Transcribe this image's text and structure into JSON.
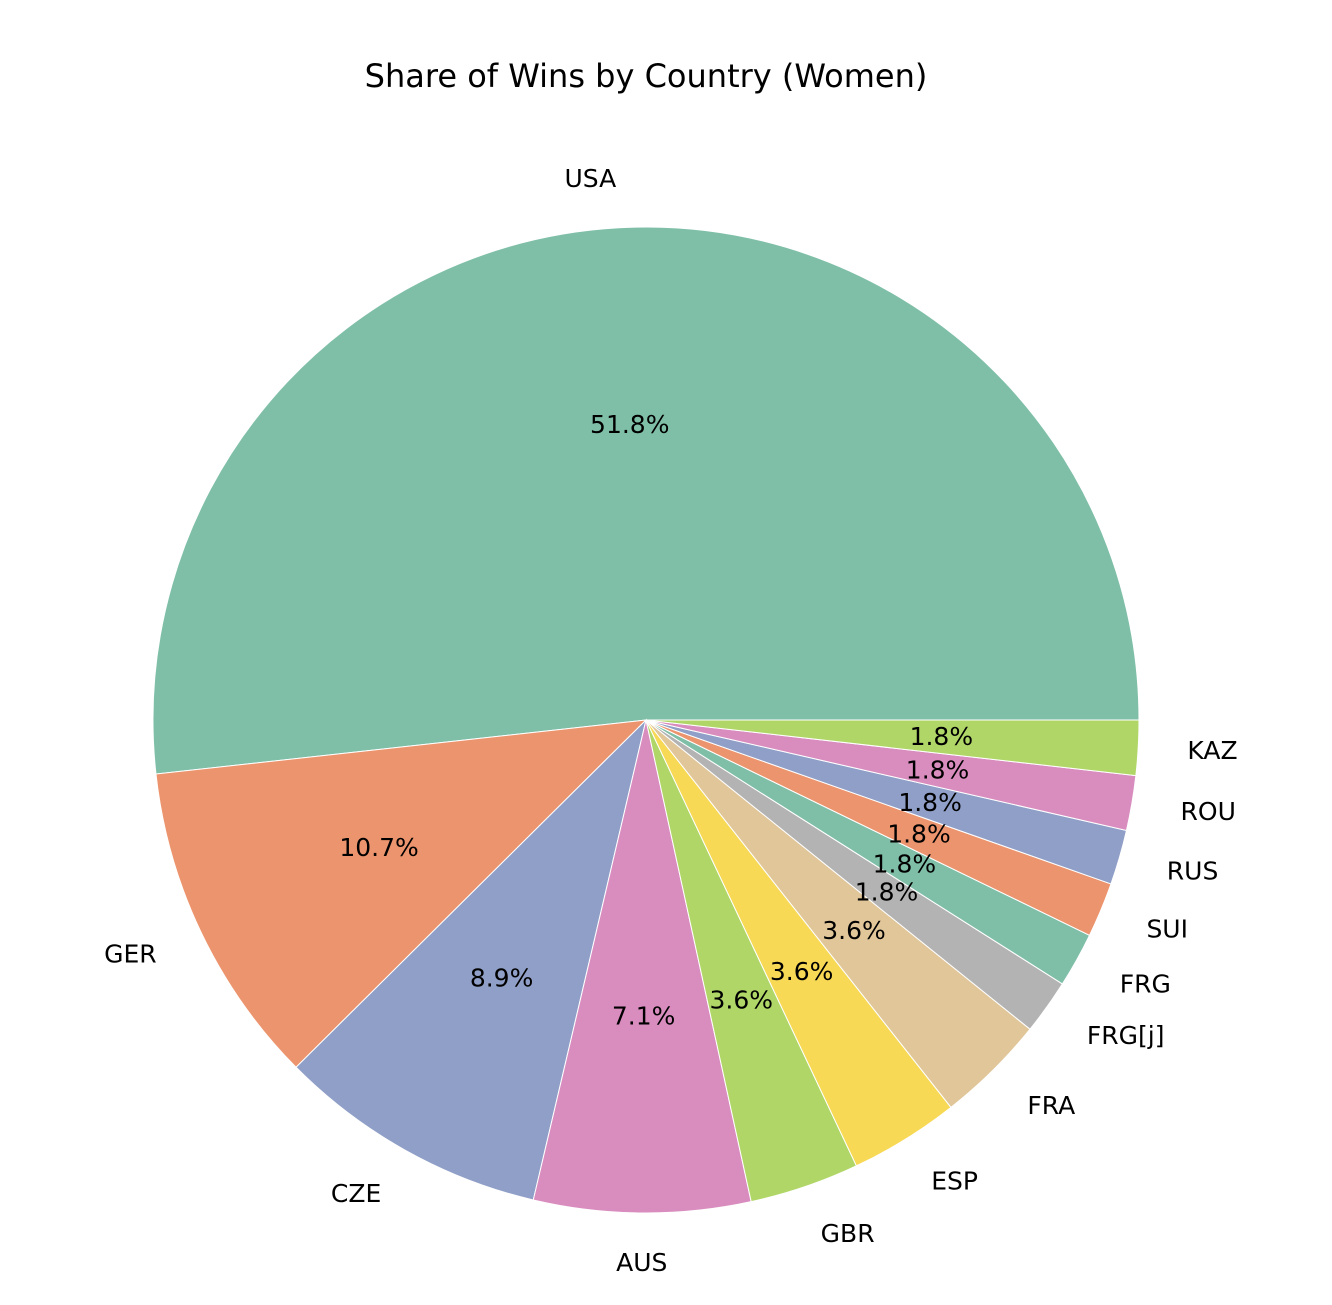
{
  "chart_data": {
    "type": "pie",
    "title": "Share of Wins by Country (Women)",
    "start_angle_deg": 0,
    "direction": "counterclockwise",
    "slices": [
      {
        "label": "USA",
        "value": 51.8,
        "pct_label": "51.8%",
        "color": "#7fbfa8"
      },
      {
        "label": "GER",
        "value": 10.7,
        "pct_label": "10.7%",
        "color": "#ec946d"
      },
      {
        "label": "CZE",
        "value": 8.9,
        "pct_label": "8.9%",
        "color": "#909fc7"
      },
      {
        "label": "AUS",
        "value": 7.1,
        "pct_label": "7.1%",
        "color": "#d98dbf"
      },
      {
        "label": "GBR",
        "value": 3.6,
        "pct_label": "3.6%",
        "color": "#b0d667"
      },
      {
        "label": "ESP",
        "value": 3.6,
        "pct_label": "3.6%",
        "color": "#f7d955"
      },
      {
        "label": "FRA",
        "value": 3.6,
        "pct_label": "3.6%",
        "color": "#e0c699"
      },
      {
        "label": "FRG[j]",
        "value": 1.8,
        "pct_label": "1.8%",
        "color": "#b3b3b3"
      },
      {
        "label": "FRG",
        "value": 1.8,
        "pct_label": "1.8%",
        "color": "#7fbfa8"
      },
      {
        "label": "SUI",
        "value": 1.8,
        "pct_label": "1.8%",
        "color": "#ec946d"
      },
      {
        "label": "RUS",
        "value": 1.8,
        "pct_label": "1.8%",
        "color": "#909fc7"
      },
      {
        "label": "ROU",
        "value": 1.8,
        "pct_label": "1.8%",
        "color": "#d98dbf"
      },
      {
        "label": "KAZ",
        "value": 1.8,
        "pct_label": "1.8%",
        "color": "#b0d667"
      }
    ]
  }
}
